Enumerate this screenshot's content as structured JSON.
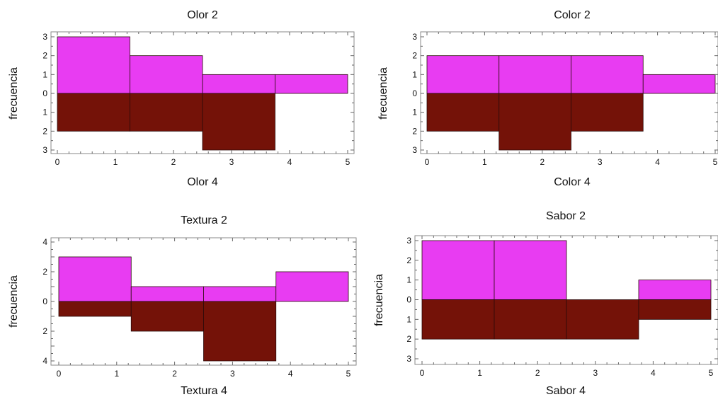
{
  "colors": {
    "upper": "#e83cf2",
    "lower": "#741208"
  },
  "chart_data": [
    {
      "type": "bar",
      "title": "Olor 2",
      "xlabel": "Olor 4",
      "ylabel": "frecuencia",
      "xlim": [
        0,
        5
      ],
      "ylim": [
        -3,
        3
      ],
      "bin_edges": [
        0,
        1.25,
        2.5,
        3.75,
        5
      ],
      "series": [
        {
          "name": "Olor 2",
          "values": [
            3,
            2,
            1,
            1
          ]
        },
        {
          "name": "Olor 4",
          "values": [
            2,
            2,
            3,
            0
          ]
        }
      ],
      "xticks": [
        "0",
        "1",
        "2",
        "3",
        "4",
        "5"
      ],
      "yticks": [
        {
          "v": 3,
          "t": "3"
        },
        {
          "v": 2,
          "t": "2"
        },
        {
          "v": 1,
          "t": "1"
        },
        {
          "v": 0,
          "t": "0"
        },
        {
          "v": -1,
          "t": "1"
        },
        {
          "v": -2,
          "t": "2"
        },
        {
          "v": -3,
          "t": "3"
        }
      ]
    },
    {
      "type": "bar",
      "title": "Color 2",
      "xlabel": "Color 4",
      "ylabel": "frecuencia",
      "xlim": [
        0,
        5
      ],
      "ylim": [
        -3,
        3
      ],
      "bin_edges": [
        0,
        1.25,
        2.5,
        3.75,
        5
      ],
      "series": [
        {
          "name": "Color 2",
          "values": [
            2,
            2,
            2,
            1
          ]
        },
        {
          "name": "Color 4",
          "values": [
            2,
            3,
            2,
            0
          ]
        }
      ],
      "xticks": [
        "0",
        "1",
        "2",
        "3",
        "4",
        "5"
      ],
      "yticks": [
        {
          "v": 3,
          "t": "3"
        },
        {
          "v": 2,
          "t": "2"
        },
        {
          "v": 1,
          "t": "1"
        },
        {
          "v": 0,
          "t": "0"
        },
        {
          "v": -1,
          "t": "1"
        },
        {
          "v": -2,
          "t": "2"
        },
        {
          "v": -3,
          "t": "3"
        }
      ]
    },
    {
      "type": "bar",
      "title": "Textura 2",
      "xlabel": "Textura 4",
      "ylabel": "frecuencia",
      "xlim": [
        0,
        5
      ],
      "ylim": [
        -4,
        4
      ],
      "bin_edges": [
        0,
        1.25,
        2.5,
        3.75,
        5
      ],
      "series": [
        {
          "name": "Textura 2",
          "values": [
            3,
            1,
            1,
            2
          ]
        },
        {
          "name": "Textura 4",
          "values": [
            1,
            2,
            4,
            0
          ]
        }
      ],
      "xticks": [
        "0",
        "1",
        "2",
        "3",
        "4",
        "5"
      ],
      "yticks": [
        {
          "v": 4,
          "t": "4"
        },
        {
          "v": 2,
          "t": "2"
        },
        {
          "v": 0,
          "t": "0"
        },
        {
          "v": -2,
          "t": "2"
        },
        {
          "v": -4,
          "t": "4"
        }
      ]
    },
    {
      "type": "bar",
      "title": "Sabor 2",
      "xlabel": "Sabor 4",
      "ylabel": "frecuencia",
      "xlim": [
        0,
        5
      ],
      "ylim": [
        -3,
        3
      ],
      "bin_edges": [
        0,
        1.25,
        2.5,
        3.75,
        5
      ],
      "series": [
        {
          "name": "Sabor 2",
          "values": [
            3,
            3,
            0,
            1
          ]
        },
        {
          "name": "Sabor 4",
          "values": [
            2,
            2,
            2,
            1
          ]
        }
      ],
      "xticks": [
        "0",
        "1",
        "2",
        "3",
        "4",
        "5"
      ],
      "yticks": [
        {
          "v": 3,
          "t": "3"
        },
        {
          "v": 2,
          "t": "2"
        },
        {
          "v": 1,
          "t": "1"
        },
        {
          "v": 0,
          "t": "0"
        },
        {
          "v": -1,
          "t": "1"
        },
        {
          "v": -2,
          "t": "2"
        },
        {
          "v": -3,
          "t": "3"
        }
      ]
    }
  ]
}
